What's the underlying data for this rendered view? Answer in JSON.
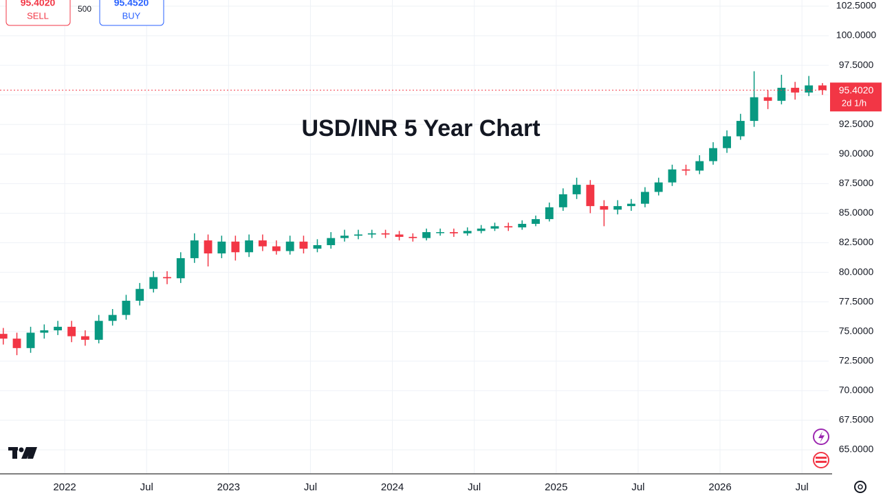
{
  "chart_data": {
    "type": "candlestick",
    "title": "USD/INR 5 Year Chart",
    "x": [
      2021.625,
      2021.708,
      2021.792,
      2021.875,
      2021.958,
      2022.042,
      2022.125,
      2022.208,
      2022.292,
      2022.375,
      2022.458,
      2022.542,
      2022.625,
      2022.708,
      2022.792,
      2022.875,
      2022.958,
      2023.042,
      2023.125,
      2023.208,
      2023.292,
      2023.375,
      2023.458,
      2023.542,
      2023.625,
      2023.708,
      2023.792,
      2023.875,
      2023.958,
      2024.042,
      2024.125,
      2024.208,
      2024.292,
      2024.375,
      2024.458,
      2024.542,
      2024.625,
      2024.708,
      2024.792,
      2024.875,
      2024.958,
      2025.042,
      2025.125,
      2025.208,
      2025.292,
      2025.375,
      2025.458,
      2025.542,
      2025.625,
      2025.708,
      2025.792,
      2025.875,
      2025.958,
      2026.042,
      2026.125,
      2026.208,
      2026.292,
      2026.375,
      2026.458,
      2026.542,
      2026.625
    ],
    "open": [
      74.8,
      74.4,
      73.6,
      74.9,
      75.1,
      75.4,
      74.6,
      74.3,
      75.9,
      76.4,
      77.6,
      78.6,
      79.6,
      79.5,
      81.2,
      82.7,
      81.6,
      82.6,
      81.7,
      82.7,
      82.2,
      81.8,
      82.6,
      82.0,
      82.3,
      82.9,
      83.1,
      83.2,
      83.3,
      83.2,
      83.0,
      82.9,
      83.4,
      83.4,
      83.3,
      83.5,
      83.7,
      83.9,
      83.8,
      84.1,
      84.5,
      85.5,
      86.6,
      87.4,
      85.6,
      85.3,
      85.6,
      85.8,
      86.8,
      87.6,
      88.7,
      88.6,
      89.4,
      90.5,
      91.5,
      92.8,
      94.8,
      94.5,
      95.6,
      95.2,
      95.8
    ],
    "high": [
      75.3,
      74.9,
      75.4,
      75.6,
      75.9,
      75.9,
      75.1,
      76.4,
      76.9,
      78.1,
      79.1,
      80.1,
      80.1,
      81.7,
      83.3,
      83.2,
      83.1,
      83.1,
      83.2,
      83.2,
      82.7,
      83.1,
      83.1,
      82.8,
      83.4,
      83.6,
      83.6,
      83.6,
      83.6,
      83.5,
      83.3,
      83.7,
      83.7,
      83.7,
      83.8,
      84.0,
      84.2,
      84.2,
      84.4,
      84.8,
      85.9,
      87.1,
      88.0,
      87.8,
      86.1,
      86.1,
      86.2,
      87.2,
      88.0,
      89.1,
      89.1,
      89.9,
      91.0,
      92.0,
      93.4,
      97.0,
      95.4,
      96.7,
      96.1,
      96.6,
      96.0
    ],
    "low": [
      73.9,
      73.0,
      73.2,
      74.4,
      74.7,
      74.1,
      73.8,
      74.0,
      75.5,
      76.0,
      77.2,
      78.3,
      79.0,
      79.1,
      80.8,
      80.5,
      81.2,
      81.0,
      81.3,
      81.8,
      81.5,
      81.5,
      81.6,
      81.7,
      82.0,
      82.6,
      82.8,
      82.9,
      82.9,
      82.7,
      82.6,
      82.7,
      83.1,
      83.0,
      83.1,
      83.3,
      83.5,
      83.5,
      83.6,
      83.9,
      84.3,
      85.2,
      86.2,
      85.0,
      83.9,
      84.9,
      85.2,
      85.5,
      86.5,
      87.3,
      88.2,
      88.3,
      89.1,
      90.1,
      91.2,
      92.3,
      93.8,
      94.2,
      94.6,
      94.9,
      95.0
    ],
    "close": [
      74.4,
      73.6,
      74.9,
      75.1,
      75.4,
      74.6,
      74.3,
      75.9,
      76.4,
      77.6,
      78.6,
      79.6,
      79.5,
      81.2,
      82.7,
      81.6,
      82.6,
      81.7,
      82.7,
      82.2,
      81.8,
      82.6,
      82.0,
      82.3,
      82.9,
      83.1,
      83.2,
      83.3,
      83.2,
      83.0,
      82.9,
      83.4,
      83.4,
      83.3,
      83.5,
      83.7,
      83.9,
      83.8,
      84.1,
      84.5,
      85.5,
      86.6,
      87.4,
      85.6,
      85.3,
      85.6,
      85.8,
      86.8,
      87.6,
      88.7,
      88.6,
      89.4,
      90.5,
      91.5,
      92.8,
      94.8,
      94.5,
      95.6,
      95.2,
      95.8,
      95.4
    ],
    "up_color": "#089981",
    "down_color": "#f23645",
    "xlim": [
      2021.605,
      2026.663
    ],
    "ylim": [
      62.97,
      103.02
    ],
    "xticks": [
      2022,
      {
        "value": 2022.5,
        "label": "Jul"
      },
      2023,
      {
        "value": 2023.5,
        "label": "Jul"
      },
      2024,
      {
        "value": 2024.5,
        "label": "Jul"
      },
      2025,
      {
        "value": 2025.5,
        "label": "Jul"
      },
      2026,
      {
        "value": 2026.5,
        "label": "Jul"
      }
    ],
    "yticks": [
      {
        "value": 65,
        "label": "65.0000"
      },
      {
        "value": 67.5,
        "label": "67.5000"
      },
      {
        "value": 70,
        "label": "70.0000"
      },
      {
        "value": 72.5,
        "label": "72.5000"
      },
      {
        "value": 75,
        "label": "75.0000"
      },
      {
        "value": 77.5,
        "label": "77.5000"
      },
      {
        "value": 80,
        "label": "80.0000"
      },
      {
        "value": 82.5,
        "label": "82.5000"
      },
      {
        "value": 85,
        "label": "85.0000"
      },
      {
        "value": 87.5,
        "label": "87.5000"
      },
      {
        "value": 90,
        "label": "90.0000"
      },
      {
        "value": 92.5,
        "label": "92.5000"
      },
      {
        "value": 95,
        "label": "95.0000"
      },
      {
        "value": 97.5,
        "label": "97.5000"
      },
      {
        "value": 100,
        "label": "100.0000"
      },
      {
        "value": 102.5,
        "label": "102.5000"
      }
    ],
    "grid": true,
    "last_price": {
      "value": 95.402,
      "label": "95.4020"
    },
    "countdown": "2d 1/h"
  },
  "trade_panel": {
    "sell_price": "95.4020",
    "sell_label": "SELL",
    "quantity": "500",
    "buy_price": "95.4520",
    "buy_label": "BUY"
  }
}
